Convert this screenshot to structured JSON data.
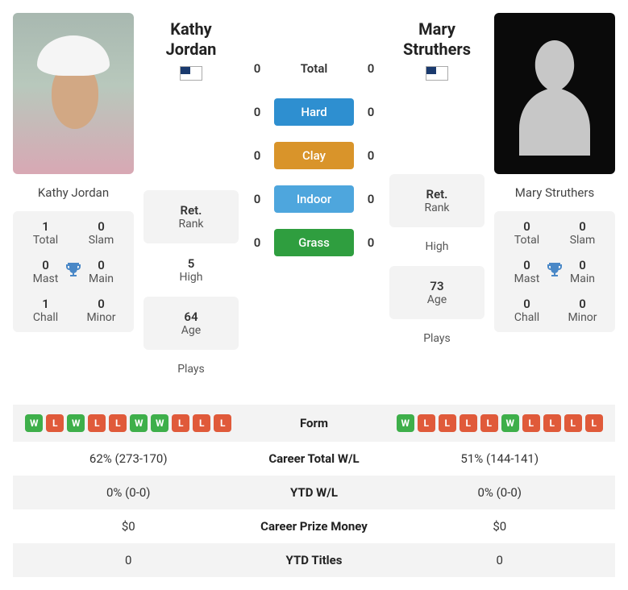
{
  "player1": {
    "name": "Kathy Jordan",
    "country": "USA",
    "titles": {
      "total": {
        "num": "1",
        "label": "Total"
      },
      "slam": {
        "num": "0",
        "label": "Slam"
      },
      "mast": {
        "num": "0",
        "label": "Mast"
      },
      "main": {
        "num": "0",
        "label": "Main"
      },
      "chall": {
        "num": "1",
        "label": "Chall"
      },
      "minor": {
        "num": "0",
        "label": "Minor"
      }
    },
    "stats": {
      "rank": {
        "val": "Ret.",
        "lab": "Rank"
      },
      "high": {
        "val": "5",
        "lab": "High"
      },
      "age": {
        "val": "64",
        "lab": "Age"
      },
      "plays": {
        "val": "",
        "lab": "Plays"
      }
    }
  },
  "player2": {
    "name": "Mary Struthers",
    "country": "USA",
    "titles": {
      "total": {
        "num": "0",
        "label": "Total"
      },
      "slam": {
        "num": "0",
        "label": "Slam"
      },
      "mast": {
        "num": "0",
        "label": "Mast"
      },
      "main": {
        "num": "0",
        "label": "Main"
      },
      "chall": {
        "num": "0",
        "label": "Chall"
      },
      "minor": {
        "num": "0",
        "label": "Minor"
      }
    },
    "stats": {
      "rank": {
        "val": "Ret.",
        "lab": "Rank"
      },
      "high": {
        "val": "",
        "lab": "High"
      },
      "age": {
        "val": "73",
        "lab": "Age"
      },
      "plays": {
        "val": "",
        "lab": "Plays"
      }
    }
  },
  "h2h": {
    "total": {
      "p1": "0",
      "p2": "0",
      "label": "Total"
    },
    "hard": {
      "p1": "0",
      "p2": "0",
      "label": "Hard"
    },
    "clay": {
      "p1": "0",
      "p2": "0",
      "label": "Clay"
    },
    "indoor": {
      "p1": "0",
      "p2": "0",
      "label": "Indoor"
    },
    "grass": {
      "p1": "0",
      "p2": "0",
      "label": "Grass"
    }
  },
  "table": {
    "form": {
      "label": "Form",
      "p1": [
        "W",
        "L",
        "W",
        "L",
        "L",
        "W",
        "W",
        "L",
        "L",
        "L"
      ],
      "p2": [
        "W",
        "L",
        "L",
        "L",
        "L",
        "W",
        "L",
        "L",
        "L",
        "L"
      ]
    },
    "career_wl": {
      "label": "Career Total W/L",
      "p1": "62% (273-170)",
      "p2": "51% (144-141)"
    },
    "ytd_wl": {
      "label": "YTD W/L",
      "p1": "0% (0-0)",
      "p2": "0% (0-0)"
    },
    "prize": {
      "label": "Career Prize Money",
      "p1": "$0",
      "p2": "$0"
    },
    "ytd_titles": {
      "label": "YTD Titles",
      "p1": "0",
      "p2": "0"
    }
  },
  "colors": {
    "win": "#3eaf4a",
    "loss": "#e05a3a",
    "hard": "#2e8fd0",
    "clay": "#d9942a",
    "indoor": "#4ea6dd",
    "grass": "#2f9e3f",
    "trophy": "#4a88c7"
  }
}
